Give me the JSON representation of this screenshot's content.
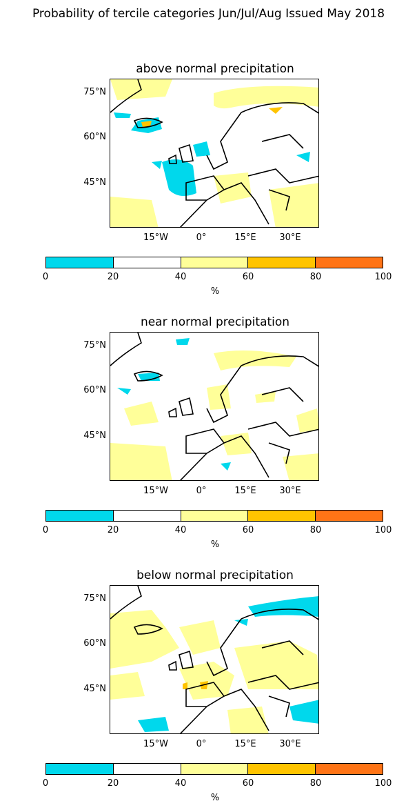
{
  "title": "Probability of tercile categories Jun/Jul/Aug Issued May 2018",
  "panels": [
    {
      "title": "above normal precipitation"
    },
    {
      "title": "near normal precipitation"
    },
    {
      "title": "below normal precipitation"
    }
  ],
  "lat_labels": [
    "75°N",
    "60°N",
    "45°N"
  ],
  "lon_labels": [
    "15°W",
    "0°",
    "15°E",
    "30°E"
  ],
  "colorbar": {
    "ticks": [
      "0",
      "20",
      "40",
      "60",
      "80",
      "100"
    ],
    "unit": "%",
    "colors": [
      "#00d8ec",
      "#ffffff",
      "#ffff99",
      "#ffc400",
      "#ff7416"
    ]
  }
}
